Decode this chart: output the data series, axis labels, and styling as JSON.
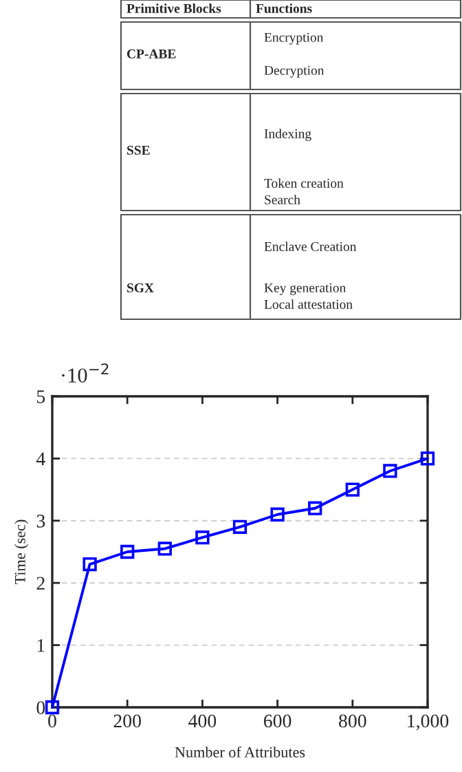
{
  "chart_data": [
    {
      "type": "other",
      "annotations": [
        "Primitive Blocks",
        "Functions",
        "CP-ABE",
        "Encryption",
        "Decryption",
        "SSE",
        "Indexing",
        "Token creation",
        "Search",
        "SGX",
        "Enclave Creation",
        "Key generation",
        "Local attestation"
      ]
    },
    {
      "type": "line",
      "xlabel": "Number of Attributes",
      "ylabel": "Time (sec)",
      "annotations": [
        "·10$^{−2}$"
      ],
      "x": [
        0,
        100,
        200,
        300,
        400,
        500,
        600,
        700,
        800,
        900,
        1000
      ],
      "series": [
        {
          "color": "#0000ff",
          "values": [
            0,
            2.3,
            2.5,
            2.55,
            2.73,
            2.9,
            3.1,
            3.2,
            3.5,
            3.8,
            4.0
          ]
        }
      ],
      "xlim": [
        0,
        1000
      ],
      "xticks": [
        0,
        200,
        400,
        600,
        800,
        {
          "value": 1000,
          "label": "1,000"
        }
      ],
      "ylim": [
        0,
        5
      ],
      "yticks": [
        0,
        1,
        2,
        3,
        4,
        5
      ],
      "grid": "y",
      "marker": "square",
      "line_style": "solid"
    }
  ]
}
